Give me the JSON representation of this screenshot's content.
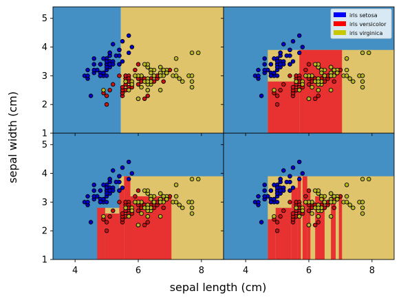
{
  "chart_data": {
    "type": "scatter",
    "xlabel": "sepal length (cm)",
    "ylabel": "sepal width (cm)",
    "xlim": [
      3.3,
      8.7
    ],
    "ylim": [
      1.0,
      5.4
    ],
    "x_ticks": [
      "4",
      "6",
      "8"
    ],
    "y_ticks": [
      "1",
      "2",
      "3",
      "4",
      "5"
    ],
    "legend": {
      "placement": "top-right",
      "entries": [
        {
          "label": "iris setosa",
          "color": "#0000ff"
        },
        {
          "label": "iris versicolor",
          "color": "#ff0000"
        },
        {
          "label": "iris virginica",
          "color": "#c8c800"
        }
      ]
    },
    "region_colors": {
      "setosa": "#4490c4",
      "versicolor": "#e83232",
      "virginica": "#e0c46c"
    },
    "marker_colors": {
      "setosa": "#0000cc",
      "versicolor": "#cc1111",
      "virginica": "#b8b820"
    },
    "panels": [
      {
        "regions": [
          {
            "cls": "setosa",
            "x": [
              3.3,
              5.45
            ],
            "y": [
              1.0,
              5.4
            ]
          },
          {
            "cls": "virginica",
            "x": [
              5.45,
              8.7
            ],
            "y": [
              1.0,
              5.4
            ]
          }
        ]
      },
      {
        "regions": [
          {
            "cls": "setosa",
            "x": [
              3.3,
              8.7
            ],
            "y": [
              1.0,
              5.4
            ]
          },
          {
            "cls": "virginica",
            "x": [
              4.7,
              8.7
            ],
            "y": [
              1.0,
              3.9
            ]
          },
          {
            "cls": "versicolor",
            "x": [
              4.7,
              5.7
            ],
            "y": [
              1.0,
              2.8
            ]
          },
          {
            "cls": "versicolor",
            "x": [
              5.7,
              7.05
            ],
            "y": [
              1.0,
              3.9
            ]
          }
        ]
      },
      {
        "regions": [
          {
            "cls": "setosa",
            "x": [
              3.3,
              8.7
            ],
            "y": [
              1.0,
              5.4
            ]
          },
          {
            "cls": "virginica",
            "x": [
              5.4,
              8.7
            ],
            "y": [
              1.0,
              3.9
            ]
          },
          {
            "cls": "virginica",
            "x": [
              4.95,
              5.4
            ],
            "y": [
              2.6,
              2.8
            ]
          },
          {
            "cls": "versicolor",
            "x": [
              4.7,
              4.95
            ],
            "y": [
              1.0,
              2.8
            ]
          },
          {
            "cls": "versicolor",
            "x": [
              4.95,
              5.4
            ],
            "y": [
              1.0,
              2.6
            ]
          },
          {
            "cls": "versicolor",
            "x": [
              5.4,
              5.55
            ],
            "y": [
              1.0,
              3.5
            ]
          },
          {
            "cls": "versicolor",
            "x": [
              5.55,
              5.75
            ],
            "y": [
              1.0,
              3.9
            ]
          },
          {
            "cls": "versicolor",
            "x": [
              5.75,
              7.05
            ],
            "y": [
              1.0,
              3.2
            ]
          }
        ]
      },
      {
        "regions": [
          {
            "cls": "setosa",
            "x": [
              3.3,
              8.7
            ],
            "y": [
              1.0,
              5.4
            ]
          },
          {
            "cls": "virginica",
            "x": [
              4.7,
              8.7
            ],
            "y": [
              1.0,
              3.9
            ]
          },
          {
            "cls": "versicolor",
            "x": [
              4.7,
              4.95
            ],
            "y": [
              1.0,
              2.4
            ]
          },
          {
            "cls": "versicolor",
            "x": [
              4.95,
              5.45
            ],
            "y": [
              1.0,
              2.8
            ]
          },
          {
            "cls": "versicolor",
            "x": [
              5.45,
              5.65
            ],
            "y": [
              1.0,
              3.5
            ]
          },
          {
            "cls": "versicolor",
            "x": [
              5.65,
              5.75
            ],
            "y": [
              1.0,
              3.9
            ]
          },
          {
            "cls": "versicolor",
            "x": [
              5.8,
              5.95
            ],
            "y": [
              1.0,
              3.9
            ]
          },
          {
            "cls": "versicolor",
            "x": [
              5.95,
              6.05
            ],
            "y": [
              1.0,
              3.4
            ]
          },
          {
            "cls": "versicolor",
            "x": [
              6.2,
              6.5
            ],
            "y": [
              1.0,
              3.2
            ]
          },
          {
            "cls": "versicolor",
            "x": [
              6.7,
              6.85
            ],
            "y": [
              1.0,
              3.2
            ]
          },
          {
            "cls": "versicolor",
            "x": [
              6.95,
              7.05
            ],
            "y": [
              1.0,
              3.2
            ]
          }
        ]
      }
    ],
    "series": [
      {
        "cls": "setosa",
        "points": [
          [
            5.1,
            3.5
          ],
          [
            4.9,
            3.0
          ],
          [
            4.7,
            3.2
          ],
          [
            4.6,
            3.1
          ],
          [
            5.0,
            3.6
          ],
          [
            5.4,
            3.9
          ],
          [
            4.6,
            3.4
          ],
          [
            5.0,
            3.4
          ],
          [
            4.4,
            2.9
          ],
          [
            4.9,
            3.1
          ],
          [
            5.4,
            3.7
          ],
          [
            4.8,
            3.4
          ],
          [
            4.8,
            3.0
          ],
          [
            4.3,
            3.0
          ],
          [
            5.8,
            4.0
          ],
          [
            5.7,
            4.4
          ],
          [
            5.4,
            3.9
          ],
          [
            5.1,
            3.5
          ],
          [
            5.7,
            3.8
          ],
          [
            5.1,
            3.8
          ],
          [
            5.4,
            3.4
          ],
          [
            5.1,
            3.7
          ],
          [
            4.6,
            3.6
          ],
          [
            5.1,
            3.3
          ],
          [
            4.8,
            3.4
          ],
          [
            5.0,
            3.0
          ],
          [
            5.0,
            3.4
          ],
          [
            5.2,
            3.5
          ],
          [
            5.2,
            3.4
          ],
          [
            4.7,
            3.2
          ],
          [
            4.8,
            3.1
          ],
          [
            5.4,
            3.4
          ],
          [
            5.2,
            4.1
          ],
          [
            5.5,
            4.2
          ],
          [
            4.9,
            3.1
          ],
          [
            5.0,
            3.2
          ],
          [
            5.5,
            3.5
          ],
          [
            4.9,
            3.6
          ],
          [
            4.4,
            3.0
          ],
          [
            5.1,
            3.4
          ],
          [
            5.0,
            3.5
          ],
          [
            4.5,
            2.3
          ],
          [
            4.4,
            3.2
          ],
          [
            5.0,
            3.5
          ],
          [
            5.1,
            3.8
          ],
          [
            4.8,
            3.0
          ],
          [
            5.1,
            3.8
          ],
          [
            4.6,
            3.2
          ],
          [
            5.3,
            3.7
          ],
          [
            5.0,
            3.3
          ]
        ]
      },
      {
        "cls": "versicolor",
        "points": [
          [
            7.0,
            3.2
          ],
          [
            6.4,
            3.2
          ],
          [
            6.9,
            3.1
          ],
          [
            5.5,
            2.3
          ],
          [
            6.5,
            2.8
          ],
          [
            5.7,
            2.8
          ],
          [
            6.3,
            3.3
          ],
          [
            4.9,
            2.4
          ],
          [
            6.6,
            2.9
          ],
          [
            5.2,
            2.7
          ],
          [
            5.0,
            2.0
          ],
          [
            5.9,
            3.0
          ],
          [
            6.0,
            2.2
          ],
          [
            6.1,
            2.9
          ],
          [
            5.6,
            2.9
          ],
          [
            6.7,
            3.1
          ],
          [
            5.6,
            3.0
          ],
          [
            5.8,
            2.7
          ],
          [
            6.2,
            2.2
          ],
          [
            5.6,
            2.5
          ],
          [
            5.9,
            3.2
          ],
          [
            6.1,
            2.8
          ],
          [
            6.3,
            2.5
          ],
          [
            6.1,
            2.8
          ],
          [
            6.4,
            2.9
          ],
          [
            6.6,
            3.0
          ],
          [
            6.8,
            2.8
          ],
          [
            6.7,
            3.0
          ],
          [
            6.0,
            2.9
          ],
          [
            5.7,
            2.6
          ],
          [
            5.5,
            2.4
          ],
          [
            5.5,
            2.4
          ],
          [
            5.8,
            2.7
          ],
          [
            6.0,
            2.7
          ],
          [
            5.4,
            3.0
          ],
          [
            6.0,
            3.4
          ],
          [
            6.7,
            3.1
          ],
          [
            6.3,
            2.3
          ],
          [
            5.6,
            3.0
          ],
          [
            5.5,
            2.5
          ],
          [
            5.5,
            2.6
          ],
          [
            6.1,
            3.0
          ],
          [
            5.8,
            2.6
          ],
          [
            5.0,
            2.3
          ],
          [
            5.6,
            2.7
          ],
          [
            5.7,
            3.0
          ],
          [
            5.7,
            2.9
          ],
          [
            6.2,
            2.9
          ],
          [
            5.1,
            2.5
          ],
          [
            5.7,
            2.8
          ]
        ]
      },
      {
        "cls": "virginica",
        "points": [
          [
            6.3,
            3.3
          ],
          [
            5.8,
            2.7
          ],
          [
            7.1,
            3.0
          ],
          [
            6.3,
            2.9
          ],
          [
            6.5,
            3.0
          ],
          [
            7.6,
            3.0
          ],
          [
            4.9,
            2.5
          ],
          [
            7.3,
            2.9
          ],
          [
            6.7,
            2.5
          ],
          [
            7.2,
            3.6
          ],
          [
            6.5,
            3.2
          ],
          [
            6.4,
            2.7
          ],
          [
            6.8,
            3.0
          ],
          [
            5.7,
            2.5
          ],
          [
            5.8,
            2.8
          ],
          [
            6.4,
            3.2
          ],
          [
            6.5,
            3.0
          ],
          [
            7.7,
            3.8
          ],
          [
            7.7,
            2.6
          ],
          [
            6.0,
            2.2
          ],
          [
            6.9,
            3.2
          ],
          [
            5.6,
            2.8
          ],
          [
            7.7,
            2.8
          ],
          [
            6.3,
            2.7
          ],
          [
            6.7,
            3.3
          ],
          [
            7.2,
            3.2
          ],
          [
            6.2,
            2.8
          ],
          [
            6.1,
            3.0
          ],
          [
            6.4,
            2.8
          ],
          [
            7.2,
            3.0
          ],
          [
            7.4,
            2.8
          ],
          [
            7.9,
            3.8
          ],
          [
            6.4,
            2.8
          ],
          [
            6.3,
            2.8
          ],
          [
            6.1,
            2.6
          ],
          [
            7.7,
            3.0
          ],
          [
            6.3,
            3.4
          ],
          [
            6.4,
            3.1
          ],
          [
            6.0,
            3.0
          ],
          [
            6.9,
            3.1
          ],
          [
            6.7,
            3.1
          ],
          [
            6.9,
            3.1
          ],
          [
            5.8,
            2.7
          ],
          [
            6.8,
            3.2
          ],
          [
            6.7,
            3.3
          ],
          [
            6.7,
            3.0
          ],
          [
            6.3,
            2.5
          ],
          [
            6.5,
            3.0
          ],
          [
            6.2,
            3.4
          ],
          [
            5.9,
            3.0
          ]
        ]
      }
    ]
  }
}
